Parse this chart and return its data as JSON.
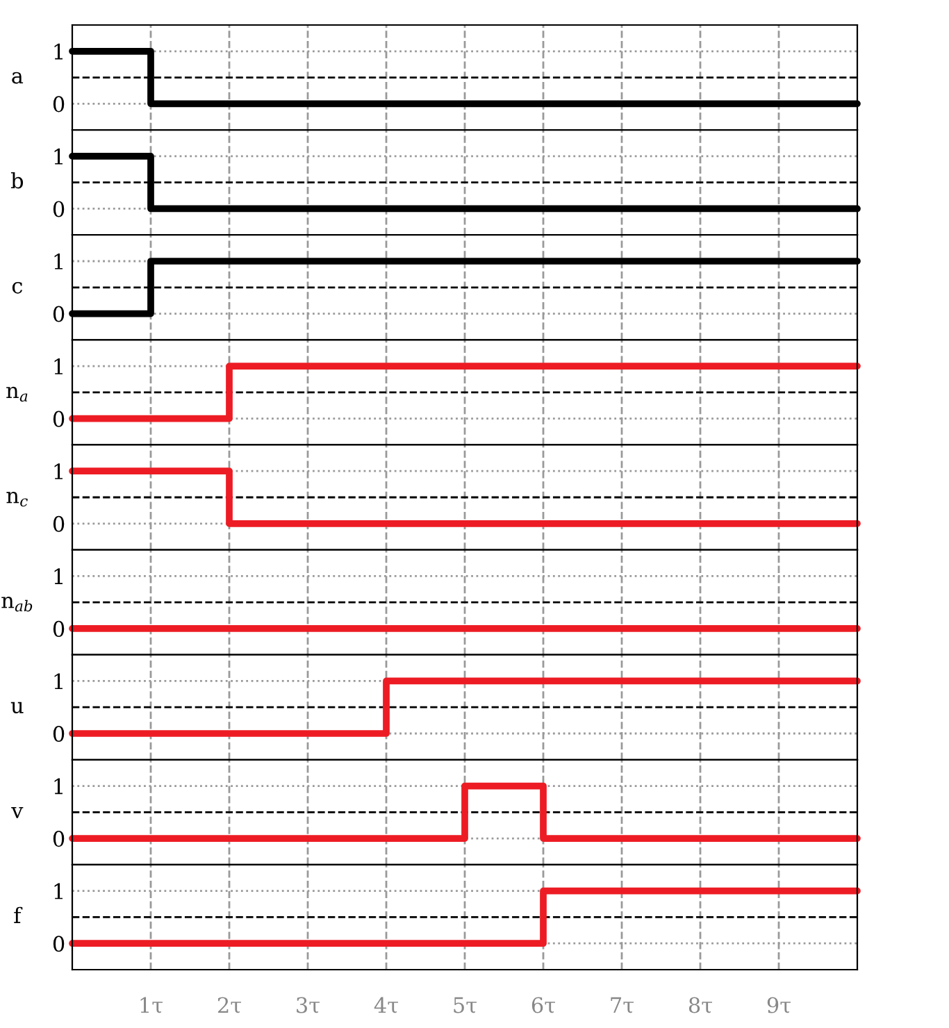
{
  "chart_data": [
    {
      "type": "step",
      "ylabel": "a",
      "x": [
        0,
        1,
        10
      ],
      "series": [
        {
          "color": "#000000",
          "values": [
            1,
            0,
            0
          ]
        }
      ],
      "xlim": [
        0,
        10
      ],
      "xticks": [
        {
          "value": 1,
          "label": null
        },
        {
          "value": 2,
          "label": null
        },
        {
          "value": 3,
          "label": null
        },
        {
          "value": 4,
          "label": null
        },
        {
          "value": 5,
          "label": null
        },
        {
          "value": 6,
          "label": null
        },
        {
          "value": 7,
          "label": null
        },
        {
          "value": 8,
          "label": null
        },
        {
          "value": 9,
          "label": null
        }
      ],
      "ylim": [
        -0.5,
        1.5
      ],
      "yticks": [
        0,
        1
      ],
      "tick_labels": "y",
      "grid": true,
      "ref_lines": [
        {
          "axis": "y",
          "value": 0.5,
          "line_style": "dashed",
          "color": "#000000"
        }
      ]
    },
    {
      "type": "step",
      "ylabel": "b",
      "x": [
        0,
        1,
        10
      ],
      "series": [
        {
          "color": "#000000",
          "values": [
            1,
            0,
            0
          ]
        }
      ],
      "xlim": [
        0,
        10
      ],
      "xticks": [
        {
          "value": 1,
          "label": null
        },
        {
          "value": 2,
          "label": null
        },
        {
          "value": 3,
          "label": null
        },
        {
          "value": 4,
          "label": null
        },
        {
          "value": 5,
          "label": null
        },
        {
          "value": 6,
          "label": null
        },
        {
          "value": 7,
          "label": null
        },
        {
          "value": 8,
          "label": null
        },
        {
          "value": 9,
          "label": null
        }
      ],
      "ylim": [
        -0.5,
        1.5
      ],
      "yticks": [
        0,
        1
      ],
      "tick_labels": "y",
      "grid": true,
      "ref_lines": [
        {
          "axis": "y",
          "value": 0.5,
          "line_style": "dashed",
          "color": "#000000"
        }
      ]
    },
    {
      "type": "step",
      "ylabel": "c",
      "x": [
        0,
        1,
        10
      ],
      "series": [
        {
          "color": "#000000",
          "values": [
            0,
            1,
            1
          ]
        }
      ],
      "xlim": [
        0,
        10
      ],
      "xticks": [
        {
          "value": 1,
          "label": null
        },
        {
          "value": 2,
          "label": null
        },
        {
          "value": 3,
          "label": null
        },
        {
          "value": 4,
          "label": null
        },
        {
          "value": 5,
          "label": null
        },
        {
          "value": 6,
          "label": null
        },
        {
          "value": 7,
          "label": null
        },
        {
          "value": 8,
          "label": null
        },
        {
          "value": 9,
          "label": null
        }
      ],
      "ylim": [
        -0.5,
        1.5
      ],
      "yticks": [
        0,
        1
      ],
      "tick_labels": "y",
      "grid": true,
      "ref_lines": [
        {
          "axis": "y",
          "value": 0.5,
          "line_style": "dashed",
          "color": "#000000"
        }
      ]
    },
    {
      "type": "step",
      "ylabel": "n$_{a}$",
      "x": [
        0,
        2,
        10
      ],
      "series": [
        {
          "color": "#ed1c24",
          "values": [
            0,
            1,
            1
          ]
        }
      ],
      "xlim": [
        0,
        10
      ],
      "xticks": [
        {
          "value": 1,
          "label": null
        },
        {
          "value": 2,
          "label": null
        },
        {
          "value": 3,
          "label": null
        },
        {
          "value": 4,
          "label": null
        },
        {
          "value": 5,
          "label": null
        },
        {
          "value": 6,
          "label": null
        },
        {
          "value": 7,
          "label": null
        },
        {
          "value": 8,
          "label": null
        },
        {
          "value": 9,
          "label": null
        }
      ],
      "ylim": [
        -0.5,
        1.5
      ],
      "yticks": [
        0,
        1
      ],
      "tick_labels": "y",
      "grid": true,
      "ref_lines": [
        {
          "axis": "y",
          "value": 0.5,
          "line_style": "dashed",
          "color": "#000000"
        }
      ]
    },
    {
      "type": "step",
      "ylabel": "n$_{c}$",
      "x": [
        0,
        2,
        10
      ],
      "series": [
        {
          "color": "#ed1c24",
          "values": [
            1,
            0,
            0
          ]
        }
      ],
      "xlim": [
        0,
        10
      ],
      "xticks": [
        {
          "value": 1,
          "label": null
        },
        {
          "value": 2,
          "label": null
        },
        {
          "value": 3,
          "label": null
        },
        {
          "value": 4,
          "label": null
        },
        {
          "value": 5,
          "label": null
        },
        {
          "value": 6,
          "label": null
        },
        {
          "value": 7,
          "label": null
        },
        {
          "value": 8,
          "label": null
        },
        {
          "value": 9,
          "label": null
        }
      ],
      "ylim": [
        -0.5,
        1.5
      ],
      "yticks": [
        0,
        1
      ],
      "tick_labels": "y",
      "grid": true,
      "ref_lines": [
        {
          "axis": "y",
          "value": 0.5,
          "line_style": "dashed",
          "color": "#000000"
        }
      ]
    },
    {
      "type": "step",
      "ylabel": "n$_{ab}$",
      "x": [
        0,
        10
      ],
      "series": [
        {
          "color": "#ed1c24",
          "values": [
            0,
            0
          ]
        }
      ],
      "xlim": [
        0,
        10
      ],
      "xticks": [
        {
          "value": 1,
          "label": null
        },
        {
          "value": 2,
          "label": null
        },
        {
          "value": 3,
          "label": null
        },
        {
          "value": 4,
          "label": null
        },
        {
          "value": 5,
          "label": null
        },
        {
          "value": 6,
          "label": null
        },
        {
          "value": 7,
          "label": null
        },
        {
          "value": 8,
          "label": null
        },
        {
          "value": 9,
          "label": null
        }
      ],
      "ylim": [
        -0.5,
        1.5
      ],
      "yticks": [
        0,
        1
      ],
      "tick_labels": "y",
      "grid": true,
      "ref_lines": [
        {
          "axis": "y",
          "value": 0.5,
          "line_style": "dashed",
          "color": "#000000"
        }
      ]
    },
    {
      "type": "step",
      "ylabel": "u",
      "x": [
        0,
        4,
        10
      ],
      "series": [
        {
          "color": "#ed1c24",
          "values": [
            0,
            1,
            1
          ]
        }
      ],
      "xlim": [
        0,
        10
      ],
      "xticks": [
        {
          "value": 1,
          "label": null
        },
        {
          "value": 2,
          "label": null
        },
        {
          "value": 3,
          "label": null
        },
        {
          "value": 4,
          "label": null
        },
        {
          "value": 5,
          "label": null
        },
        {
          "value": 6,
          "label": null
        },
        {
          "value": 7,
          "label": null
        },
        {
          "value": 8,
          "label": null
        },
        {
          "value": 9,
          "label": null
        }
      ],
      "ylim": [
        -0.5,
        1.5
      ],
      "yticks": [
        0,
        1
      ],
      "tick_labels": "y",
      "grid": true,
      "ref_lines": [
        {
          "axis": "y",
          "value": 0.5,
          "line_style": "dashed",
          "color": "#000000"
        }
      ]
    },
    {
      "type": "step",
      "ylabel": "v",
      "x": [
        0,
        5,
        6,
        10
      ],
      "series": [
        {
          "color": "#ed1c24",
          "values": [
            0,
            1,
            0,
            0
          ]
        }
      ],
      "xlim": [
        0,
        10
      ],
      "xticks": [
        {
          "value": 1,
          "label": null
        },
        {
          "value": 2,
          "label": null
        },
        {
          "value": 3,
          "label": null
        },
        {
          "value": 4,
          "label": null
        },
        {
          "value": 5,
          "label": null
        },
        {
          "value": 6,
          "label": null
        },
        {
          "value": 7,
          "label": null
        },
        {
          "value": 8,
          "label": null
        },
        {
          "value": 9,
          "label": null
        }
      ],
      "ylim": [
        -0.5,
        1.5
      ],
      "yticks": [
        0,
        1
      ],
      "tick_labels": "y",
      "grid": true,
      "ref_lines": [
        {
          "axis": "y",
          "value": 0.5,
          "line_style": "dashed",
          "color": "#000000"
        }
      ]
    },
    {
      "type": "step",
      "ylabel": "f",
      "x": [
        0,
        6,
        10
      ],
      "series": [
        {
          "color": "#ed1c24",
          "values": [
            0,
            1,
            1
          ]
        }
      ],
      "xlim": [
        0,
        10
      ],
      "xticks": [
        {
          "value": 1,
          "label": "1τ"
        },
        {
          "value": 2,
          "label": "2τ"
        },
        {
          "value": 3,
          "label": "3τ"
        },
        {
          "value": 4,
          "label": "4τ"
        },
        {
          "value": 5,
          "label": "5τ"
        },
        {
          "value": 6,
          "label": "6τ"
        },
        {
          "value": 7,
          "label": "7τ"
        },
        {
          "value": 8,
          "label": "8τ"
        },
        {
          "value": 9,
          "label": "9τ"
        }
      ],
      "ylim": [
        -0.5,
        1.5
      ],
      "yticks": [
        0,
        1
      ],
      "grid": true,
      "ref_lines": [
        {
          "axis": "y",
          "value": 0.5,
          "line_style": "dashed",
          "color": "#000000"
        }
      ]
    }
  ]
}
